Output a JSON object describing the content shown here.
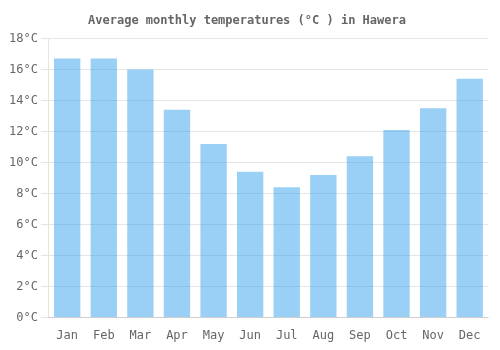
{
  "chart_data": {
    "type": "bar",
    "title": "Average monthly temperatures (°C ) in Hawera",
    "categories": [
      "Jan",
      "Feb",
      "Mar",
      "Apr",
      "May",
      "Jun",
      "Jul",
      "Aug",
      "Sep",
      "Oct",
      "Nov",
      "Dec"
    ],
    "values": [
      16.7,
      16.7,
      16.0,
      13.4,
      11.2,
      9.4,
      8.4,
      9.2,
      10.4,
      12.1,
      13.5,
      15.4
    ],
    "ylim": [
      0,
      18
    ],
    "yticks": [
      {
        "value": 0,
        "label": "0°C"
      },
      {
        "value": 2,
        "label": "2°C"
      },
      {
        "value": 4,
        "label": "4°C"
      },
      {
        "value": 6,
        "label": "6°C"
      },
      {
        "value": 8,
        "label": "8°C"
      },
      {
        "value": 10,
        "label": "10°C"
      },
      {
        "value": 12,
        "label": "12°C"
      },
      {
        "value": 14,
        "label": "14°C"
      },
      {
        "value": 16,
        "label": "16°C"
      },
      {
        "value": 18,
        "label": "18°C"
      }
    ],
    "grid": true
  }
}
